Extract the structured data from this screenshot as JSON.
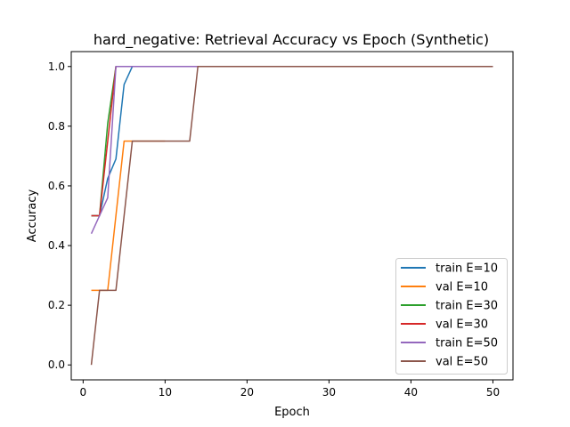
{
  "chart_data": {
    "type": "line",
    "title": "hard_negative: Retrieval Accuracy vs Epoch (Synthetic)",
    "xlabel": "Epoch",
    "ylabel": "Accuracy",
    "xlim": [
      -1.45,
      52.45
    ],
    "ylim": [
      -0.05,
      1.05
    ],
    "xticks": [
      0,
      10,
      20,
      30,
      40,
      50
    ],
    "yticks": [
      0.0,
      0.2,
      0.4,
      0.6,
      0.8,
      1.0
    ],
    "xtick_labels": [
      "0",
      "10",
      "20",
      "30",
      "40",
      "50"
    ],
    "ytick_labels": [
      "0.0",
      "0.2",
      "0.4",
      "0.6",
      "0.8",
      "1.0"
    ],
    "grid": false,
    "legend_position": "lower-right",
    "series": [
      {
        "name": "train E=10",
        "color": "#1f77b4",
        "x": [
          1,
          2,
          3,
          4,
          5,
          6,
          7,
          8,
          9,
          10
        ],
        "y": [
          0.5,
          0.5,
          0.625,
          0.69,
          0.94,
          1.0,
          1.0,
          1.0,
          1.0,
          1.0
        ]
      },
      {
        "name": "val E=10",
        "color": "#ff7f0e",
        "x": [
          1,
          2,
          3,
          4,
          5,
          6,
          7,
          8,
          9,
          10
        ],
        "y": [
          0.25,
          0.25,
          0.25,
          0.5,
          0.75,
          0.75,
          0.75,
          0.75,
          0.75,
          0.75
        ]
      },
      {
        "name": "train E=30",
        "color": "#2ca02c",
        "x": [
          1,
          2,
          3,
          4,
          5,
          6,
          7,
          8,
          9,
          10,
          11,
          12,
          13,
          14,
          15,
          16,
          17,
          18,
          19,
          20,
          21,
          22,
          23,
          24,
          25,
          26,
          27,
          28,
          29,
          30
        ],
        "y": [
          0.5,
          0.5,
          0.81,
          1.0,
          1.0,
          1.0,
          1.0,
          1.0,
          1.0,
          1.0,
          1.0,
          1.0,
          1.0,
          1.0,
          1.0,
          1.0,
          1.0,
          1.0,
          1.0,
          1.0,
          1.0,
          1.0,
          1.0,
          1.0,
          1.0,
          1.0,
          1.0,
          1.0,
          1.0,
          1.0
        ]
      },
      {
        "name": "val E=30",
        "color": "#d62728",
        "x": [
          1,
          2,
          3,
          4,
          5,
          6,
          7,
          8,
          9,
          10,
          11,
          12,
          13,
          14,
          15,
          16,
          17,
          18,
          19,
          20,
          21,
          22,
          23,
          24,
          25,
          26,
          27,
          28,
          29,
          30
        ],
        "y": [
          0.5,
          0.5,
          0.75,
          1.0,
          1.0,
          1.0,
          1.0,
          1.0,
          1.0,
          1.0,
          1.0,
          1.0,
          1.0,
          1.0,
          1.0,
          1.0,
          1.0,
          1.0,
          1.0,
          1.0,
          1.0,
          1.0,
          1.0,
          1.0,
          1.0,
          1.0,
          1.0,
          1.0,
          1.0,
          1.0
        ]
      },
      {
        "name": "train E=50",
        "color": "#9467bd",
        "x": [
          1,
          2,
          3,
          4,
          5,
          6,
          7,
          8,
          9,
          10,
          11,
          12,
          13,
          14,
          15,
          16,
          17,
          18,
          19,
          20,
          21,
          22,
          23,
          24,
          25,
          26,
          27,
          28,
          29,
          30,
          31,
          32,
          33,
          34,
          35,
          36,
          37,
          38,
          39,
          40,
          41,
          42,
          43,
          44,
          45,
          46,
          47,
          48,
          49,
          50
        ],
        "y": [
          0.44,
          0.5,
          0.56,
          1.0,
          1.0,
          1.0,
          1.0,
          1.0,
          1.0,
          1.0,
          1.0,
          1.0,
          1.0,
          1.0,
          1.0,
          1.0,
          1.0,
          1.0,
          1.0,
          1.0,
          1.0,
          1.0,
          1.0,
          1.0,
          1.0,
          1.0,
          1.0,
          1.0,
          1.0,
          1.0,
          1.0,
          1.0,
          1.0,
          1.0,
          1.0,
          1.0,
          1.0,
          1.0,
          1.0,
          1.0,
          1.0,
          1.0,
          1.0,
          1.0,
          1.0,
          1.0,
          1.0,
          1.0,
          1.0,
          1.0
        ]
      },
      {
        "name": "val E=50",
        "color": "#8c564b",
        "x": [
          1,
          2,
          3,
          4,
          5,
          6,
          7,
          8,
          9,
          10,
          11,
          12,
          13,
          14,
          15,
          16,
          17,
          18,
          19,
          20,
          21,
          22,
          23,
          24,
          25,
          26,
          27,
          28,
          29,
          30,
          31,
          32,
          33,
          34,
          35,
          36,
          37,
          38,
          39,
          40,
          41,
          42,
          43,
          44,
          45,
          46,
          47,
          48,
          49,
          50
        ],
        "y": [
          0.0,
          0.25,
          0.25,
          0.25,
          0.5,
          0.75,
          0.75,
          0.75,
          0.75,
          0.75,
          0.75,
          0.75,
          0.75,
          1.0,
          1.0,
          1.0,
          1.0,
          1.0,
          1.0,
          1.0,
          1.0,
          1.0,
          1.0,
          1.0,
          1.0,
          1.0,
          1.0,
          1.0,
          1.0,
          1.0,
          1.0,
          1.0,
          1.0,
          1.0,
          1.0,
          1.0,
          1.0,
          1.0,
          1.0,
          1.0,
          1.0,
          1.0,
          1.0,
          1.0,
          1.0,
          1.0,
          1.0,
          1.0,
          1.0,
          1.0
        ]
      }
    ]
  }
}
